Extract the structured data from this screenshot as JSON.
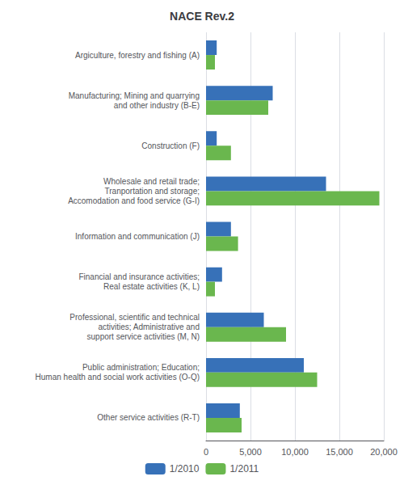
{
  "chart_data": {
    "type": "bar",
    "orientation": "horizontal",
    "title": "NACE Rev.2",
    "categories": [
      "Argiculture, forestry and fishing (A)",
      "Manufacturing; Mining and quarrying\nand other industry (B-E)",
      "Construction (F)",
      "Wholesale and retail trade;\nTranportation and storage;\nAccomodation and food service (G-I)",
      "Information and communication (J)",
      "Financial and insurance activities;\nReal estate activities (K, L)",
      "Professional, scientific and technical\nactivities; Administrative and\nsupport service activities (M, N)",
      "Public administration; Education;\nHuman health and social work activities (O-Q)",
      "Other service activities (R-T)"
    ],
    "series": [
      {
        "name": "1/2010",
        "color": "#3771b8",
        "values": [
          1200,
          7500,
          1200,
          13500,
          2800,
          1800,
          6500,
          11000,
          3800
        ]
      },
      {
        "name": "1/2011",
        "color": "#6ab74e",
        "values": [
          1000,
          7000,
          2800,
          19500,
          3600,
          1000,
          9000,
          12500,
          4000
        ]
      }
    ],
    "xlim": [
      0,
      20000
    ],
    "xticks": [
      0,
      5000,
      10000,
      15000,
      20000
    ],
    "grid": true,
    "legend": "bottom"
  }
}
